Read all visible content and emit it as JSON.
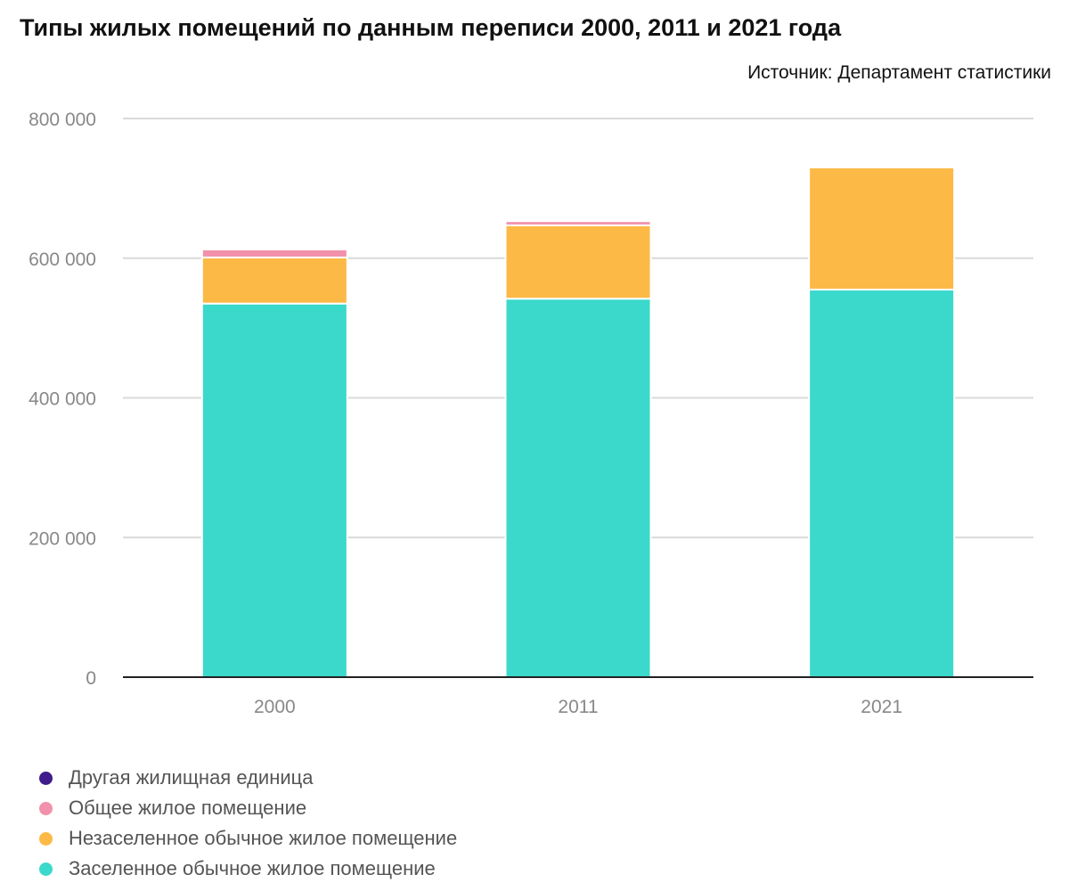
{
  "chart_data": {
    "type": "bar",
    "stacked": true,
    "title": "Типы жилых помещений по данным переписи 2000, 2011 и 2021 года",
    "source": "Источник: Департамент статистики",
    "categories": [
      "2000",
      "2011",
      "2021"
    ],
    "ylim": [
      0,
      800000
    ],
    "yticks": [
      "0",
      "200 000",
      "400 000",
      "600 000",
      "800 000"
    ],
    "ytick_values": [
      0,
      200000,
      400000,
      600000,
      800000
    ],
    "series": [
      {
        "name": "Заселенное обычное жилое помещение",
        "color": "#3ad9cc",
        "values": [
          535000,
          542000,
          555000
        ]
      },
      {
        "name": "Незаселенное обычное жилое помещение",
        "color": "#fdb946",
        "values": [
          66000,
          105000,
          175000
        ]
      },
      {
        "name": "Общее жилое помещение",
        "color": "#f291ab",
        "values": [
          11500,
          6000,
          0
        ]
      },
      {
        "name": "Другая жилищная единица",
        "color": "#3f1b8c",
        "values": [
          0,
          0,
          0
        ]
      }
    ],
    "legend_order": [
      3,
      2,
      1,
      0
    ],
    "legend": "bottom-left"
  }
}
